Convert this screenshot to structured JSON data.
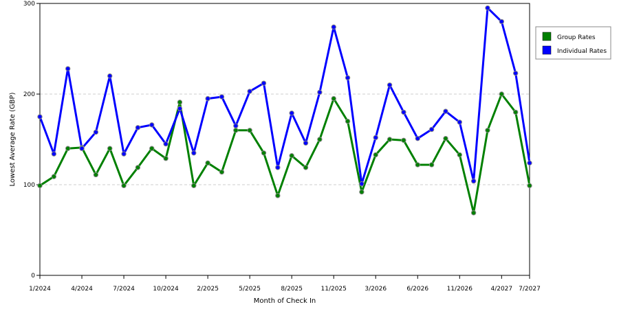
{
  "chart_data": {
    "type": "line",
    "xlabel": "Month of Check In",
    "ylabel": "Lowest Average Rate (GBP)",
    "ylim": [
      0,
      300
    ],
    "y_ticks": [
      0,
      100,
      200,
      300
    ],
    "grid": "horizontal dashed at 100 and 200",
    "legend_position": "right",
    "x_tick_labels": [
      {
        "index": 0,
        "label": "1/2024"
      },
      {
        "index": 3,
        "label": "4/2024"
      },
      {
        "index": 6,
        "label": "7/2024"
      },
      {
        "index": 9,
        "label": "10/2024"
      },
      {
        "index": 12,
        "label": "2/2025"
      },
      {
        "index": 15,
        "label": "5/2025"
      },
      {
        "index": 18,
        "label": "8/2025"
      },
      {
        "index": 21,
        "label": "11/2025"
      },
      {
        "index": 24,
        "label": "3/2026"
      },
      {
        "index": 27,
        "label": "6/2026"
      },
      {
        "index": 30,
        "label": "11/2026"
      },
      {
        "index": 33,
        "label": "4/2027"
      },
      {
        "index": 35,
        "label": "7/2027"
      }
    ],
    "point_count": 36,
    "series": [
      {
        "name": "Group Rates",
        "color": "#008000",
        "values": [
          99,
          109,
          140,
          141,
          111,
          140,
          99,
          119,
          140,
          129,
          191,
          99,
          124,
          114,
          160,
          160,
          135,
          88,
          132,
          119,
          150,
          195,
          170,
          92,
          133,
          150,
          149,
          122,
          122,
          151,
          133,
          69,
          160,
          200,
          180,
          99
        ]
      },
      {
        "name": "Individual Rates",
        "color": "#0000ff",
        "values": [
          175,
          134,
          228,
          140,
          158,
          220,
          134,
          163,
          166,
          145,
          184,
          135,
          195,
          197,
          165,
          203,
          212,
          119,
          179,
          146,
          202,
          274,
          218,
          101,
          152,
          210,
          180,
          151,
          161,
          181,
          169,
          104,
          295,
          280,
          223,
          124
        ]
      }
    ]
  }
}
